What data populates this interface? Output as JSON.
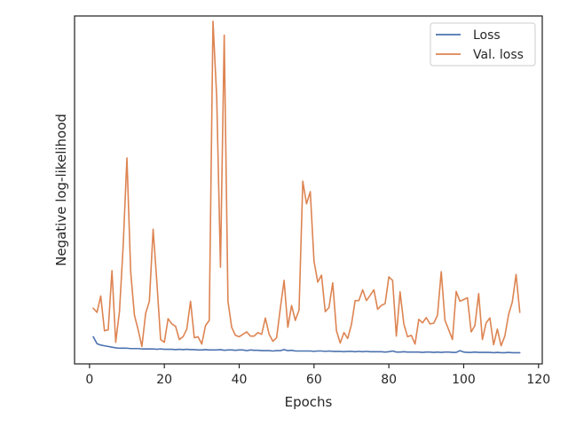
{
  "chart_data": {
    "type": "line",
    "title": "",
    "xlabel": "Epochs",
    "ylabel": "Negative log-likelihood",
    "xlim": [
      -4,
      121
    ],
    "ylim": [
      0,
      1
    ],
    "xticks": [
      0,
      20,
      40,
      60,
      80,
      100,
      120
    ],
    "grid": false,
    "legend_position": "top-right",
    "series": [
      {
        "name": "Loss",
        "color": "#4c72b0",
        "x": [
          1,
          2,
          3,
          4,
          5,
          6,
          7,
          8,
          9,
          10,
          11,
          12,
          13,
          14,
          15,
          16,
          17,
          18,
          19,
          20,
          21,
          22,
          23,
          24,
          25,
          26,
          27,
          28,
          29,
          30,
          31,
          32,
          33,
          34,
          35,
          36,
          37,
          38,
          39,
          40,
          41,
          42,
          43,
          44,
          45,
          46,
          47,
          48,
          49,
          50,
          51,
          52,
          53,
          54,
          55,
          56,
          57,
          58,
          59,
          60,
          61,
          62,
          63,
          64,
          65,
          66,
          67,
          68,
          69,
          70,
          71,
          72,
          73,
          74,
          75,
          76,
          77,
          78,
          79,
          80,
          81,
          82,
          83,
          84,
          85,
          86,
          87,
          88,
          89,
          90,
          91,
          92,
          93,
          94,
          95,
          96,
          97,
          98,
          99,
          100,
          101,
          102,
          103,
          104,
          105,
          106,
          107,
          108,
          109,
          110,
          111,
          112,
          113,
          114,
          115
        ],
        "y": [
          0.078,
          0.058,
          0.054,
          0.052,
          0.05,
          0.048,
          0.046,
          0.045,
          0.045,
          0.045,
          0.044,
          0.044,
          0.044,
          0.043,
          0.043,
          0.043,
          0.043,
          0.042,
          0.043,
          0.042,
          0.042,
          0.042,
          0.041,
          0.042,
          0.041,
          0.042,
          0.041,
          0.041,
          0.04,
          0.04,
          0.041,
          0.04,
          0.04,
          0.04,
          0.041,
          0.039,
          0.04,
          0.04,
          0.039,
          0.04,
          0.04,
          0.038,
          0.04,
          0.039,
          0.039,
          0.038,
          0.038,
          0.038,
          0.037,
          0.038,
          0.038,
          0.041,
          0.038,
          0.039,
          0.037,
          0.037,
          0.037,
          0.037,
          0.037,
          0.036,
          0.037,
          0.037,
          0.036,
          0.037,
          0.036,
          0.036,
          0.036,
          0.035,
          0.036,
          0.036,
          0.035,
          0.036,
          0.035,
          0.036,
          0.035,
          0.035,
          0.035,
          0.035,
          0.034,
          0.035,
          0.037,
          0.034,
          0.034,
          0.035,
          0.034,
          0.034,
          0.034,
          0.034,
          0.033,
          0.034,
          0.034,
          0.033,
          0.034,
          0.033,
          0.034,
          0.034,
          0.033,
          0.033,
          0.038,
          0.034,
          0.033,
          0.033,
          0.034,
          0.033,
          0.033,
          0.033,
          0.033,
          0.032,
          0.033,
          0.032,
          0.032,
          0.033,
          0.032,
          0.032,
          0.032
        ]
      },
      {
        "name": "Val. loss",
        "color": "#dd8452",
        "x": [
          1,
          2,
          3,
          4,
          5,
          6,
          7,
          8,
          9,
          10,
          11,
          12,
          13,
          14,
          15,
          16,
          17,
          18,
          19,
          20,
          21,
          22,
          23,
          24,
          25,
          26,
          27,
          28,
          29,
          30,
          31,
          32,
          33,
          34,
          35,
          36,
          37,
          38,
          39,
          40,
          41,
          42,
          43,
          44,
          45,
          46,
          47,
          48,
          49,
          50,
          51,
          52,
          53,
          54,
          55,
          56,
          57,
          58,
          59,
          60,
          61,
          62,
          63,
          64,
          65,
          66,
          67,
          68,
          69,
          70,
          71,
          72,
          73,
          74,
          75,
          76,
          77,
          78,
          79,
          80,
          81,
          82,
          83,
          84,
          85,
          86,
          87,
          88,
          89,
          90,
          91,
          92,
          93,
          94,
          95,
          96,
          97,
          98,
          99,
          100,
          101,
          102,
          103,
          104,
          105,
          106,
          107,
          108,
          109,
          110,
          111,
          112,
          113,
          114,
          115
        ],
        "y": [
          0.16,
          0.148,
          0.195,
          0.095,
          0.098,
          0.268,
          0.062,
          0.15,
          0.34,
          0.592,
          0.265,
          0.14,
          0.098,
          0.05,
          0.145,
          0.18,
          0.387,
          0.235,
          0.07,
          0.062,
          0.13,
          0.115,
          0.108,
          0.07,
          0.078,
          0.1,
          0.18,
          0.075,
          0.078,
          0.057,
          0.11,
          0.125,
          0.985,
          0.765,
          0.278,
          0.945,
          0.18,
          0.105,
          0.082,
          0.078,
          0.085,
          0.092,
          0.08,
          0.08,
          0.09,
          0.085,
          0.132,
          0.085,
          0.065,
          0.075,
          0.16,
          0.24,
          0.105,
          0.168,
          0.125,
          0.155,
          0.525,
          0.46,
          0.495,
          0.295,
          0.235,
          0.255,
          0.15,
          0.162,
          0.233,
          0.095,
          0.06,
          0.09,
          0.073,
          0.113,
          0.182,
          0.182,
          0.213,
          0.182,
          0.197,
          0.213,
          0.157,
          0.168,
          0.173,
          0.25,
          0.24,
          0.08,
          0.207,
          0.115,
          0.078,
          0.082,
          0.057,
          0.128,
          0.118,
          0.133,
          0.115,
          0.117,
          0.14,
          0.265,
          0.125,
          0.098,
          0.07,
          0.208,
          0.18,
          0.185,
          0.19,
          0.092,
          0.11,
          0.202,
          0.07,
          0.118,
          0.132,
          0.055,
          0.1,
          0.052,
          0.08,
          0.142,
          0.178,
          0.257,
          0.148
        ]
      }
    ]
  }
}
